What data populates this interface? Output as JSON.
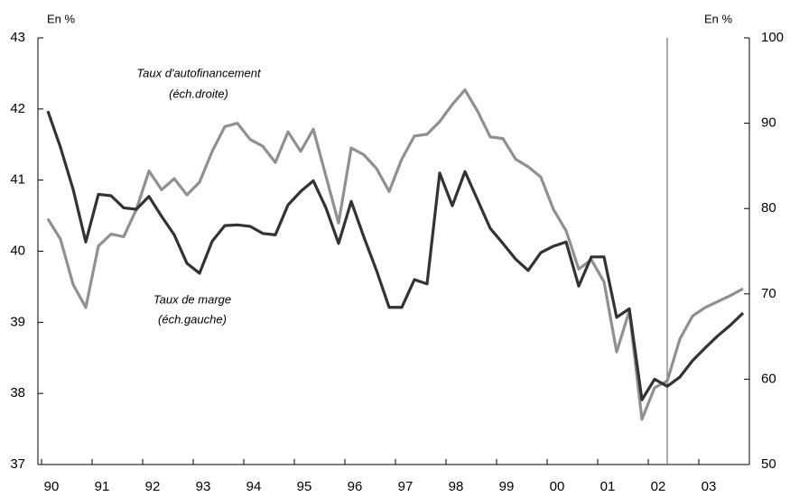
{
  "chart_data": {
    "type": "line",
    "categories": [
      "90",
      null,
      null,
      null,
      "91",
      null,
      null,
      null,
      "92",
      null,
      null,
      null,
      "93",
      null,
      null,
      null,
      "94",
      null,
      null,
      null,
      "95",
      null,
      null,
      null,
      "96",
      null,
      null,
      null,
      "97",
      null,
      null,
      null,
      "98",
      null,
      null,
      null,
      "99",
      null,
      null,
      null,
      "00",
      null,
      null,
      null,
      "01",
      null,
      null,
      null,
      "02",
      null,
      null,
      null,
      "03",
      null,
      null,
      null
    ],
    "ylabel": "En %",
    "y2label": "En %",
    "ylim": [
      37,
      43
    ],
    "yticks": [
      37,
      38,
      39,
      40,
      41,
      42,
      43
    ],
    "y2lim": [
      50,
      100
    ],
    "y2ticks": [
      50,
      60,
      70,
      80,
      90,
      100
    ],
    "vertical_line_index": 49,
    "annotations": [
      "Taux d'autofinancement",
      "(éch.droite)",
      "Taux de marge",
      "(éch.gauche)"
    ],
    "series": [
      {
        "name": "Taux de marge",
        "color": "#333333",
        "axis": "y",
        "values": [
          41.97,
          41.46,
          40.87,
          40.13,
          40.8,
          40.78,
          40.61,
          40.59,
          40.77,
          40.49,
          40.23,
          39.83,
          39.69,
          40.14,
          40.36,
          40.37,
          40.35,
          40.25,
          40.23,
          40.65,
          40.84,
          40.99,
          40.61,
          40.11,
          40.7,
          40.2,
          39.73,
          39.21,
          39.21,
          39.6,
          39.54,
          41.1,
          40.64,
          41.12,
          40.72,
          40.32,
          40.11,
          39.89,
          39.73,
          39.98,
          40.07,
          40.13,
          39.51,
          39.92,
          39.92,
          39.07,
          39.19,
          37.91,
          38.2,
          38.1,
          38.23,
          38.46,
          38.64,
          38.81,
          38.96,
          39.13
        ]
      },
      {
        "name": "Taux d'autofinancement",
        "color": "#909090",
        "axis": "y2",
        "values": [
          78.8,
          76.4,
          71.1,
          68.4,
          75.6,
          77.0,
          76.7,
          79.9,
          84.4,
          82.2,
          83.5,
          81.6,
          83.1,
          86.7,
          89.6,
          90.0,
          88.1,
          87.3,
          85.4,
          89.0,
          86.7,
          89.3,
          83.8,
          78.3,
          87.1,
          86.3,
          84.7,
          82.0,
          85.8,
          88.5,
          88.7,
          90.2,
          92.2,
          93.9,
          91.4,
          88.4,
          88.2,
          85.8,
          84.9,
          83.7,
          79.9,
          77.4,
          72.9,
          74.0,
          71.4,
          63.2,
          68.0,
          55.3,
          59.0,
          59.8,
          64.7,
          67.4,
          68.4,
          69.1,
          69.8,
          70.6
        ]
      }
    ]
  }
}
